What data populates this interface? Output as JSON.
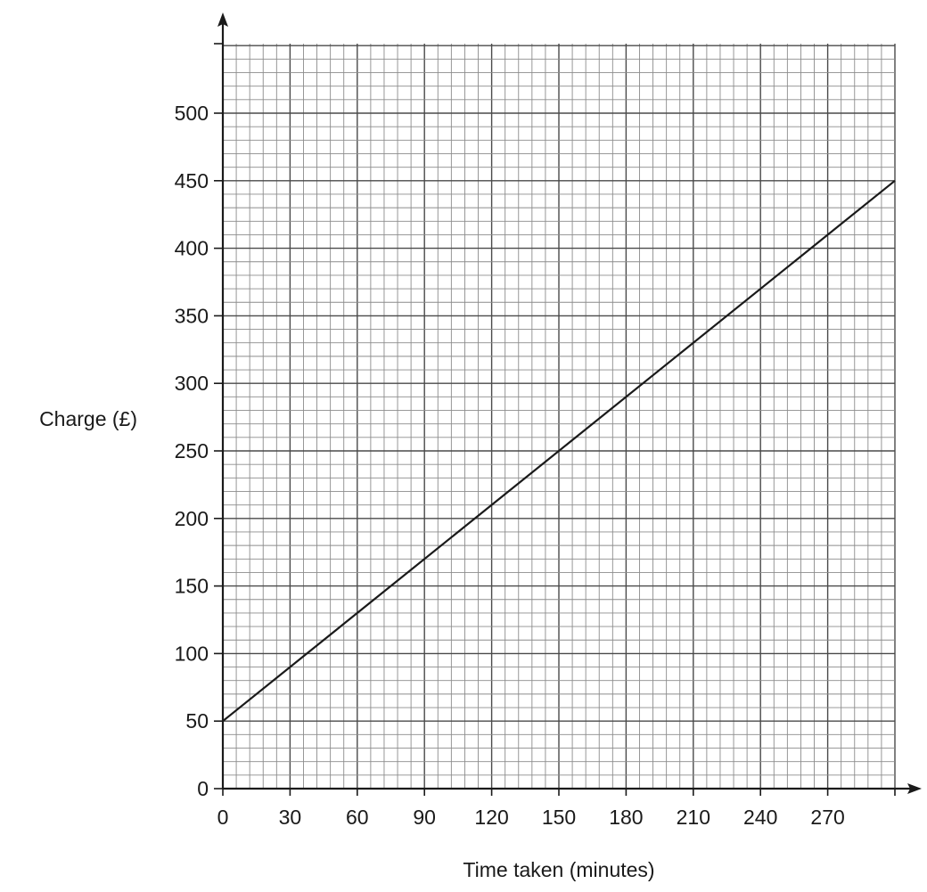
{
  "chart_data": {
    "type": "line",
    "xlabel": "Time taken (minutes)",
    "ylabel": "Charge (£)",
    "xlim": [
      0,
      300
    ],
    "ylim": [
      0,
      500
    ],
    "x_ticks": [
      0,
      30,
      60,
      90,
      120,
      150,
      180,
      210,
      240,
      270
    ],
    "y_ticks": [
      0,
      50,
      100,
      150,
      200,
      250,
      300,
      350,
      400,
      450,
      500
    ],
    "x_minor_step": 6,
    "y_minor_step": 10,
    "grid": true,
    "series": [
      {
        "x": [
          0,
          300
        ],
        "y": [
          50,
          450
        ]
      }
    ]
  }
}
